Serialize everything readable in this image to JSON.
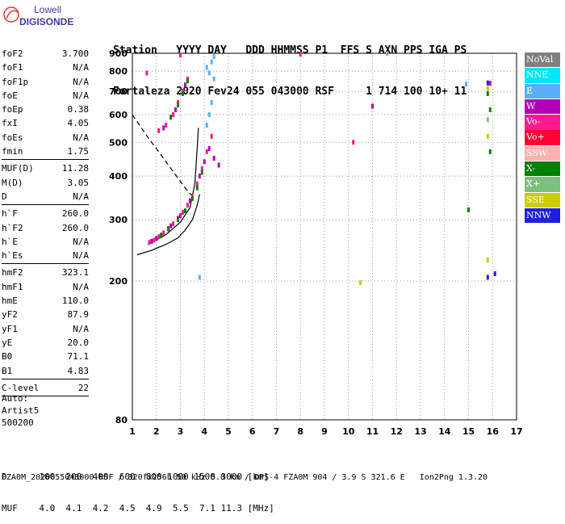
{
  "logo": {
    "line1": "Lowell",
    "line2": "DIGISONDE"
  },
  "header": {
    "line1": "Station   YYYY DAY   DDD HHMMSS P1  FFS S AXN PPS IGA PS",
    "line2": "Fortaleza 2020 Fev24 055 043000 RSF     1 714 100 10+ 11"
  },
  "params": {
    "group1": [
      {
        "label": "foF2",
        "value": "3.700"
      },
      {
        "label": "foF1",
        "value": "N/A"
      },
      {
        "label": "foF1p",
        "value": "N/A"
      },
      {
        "label": "foE",
        "value": "N/A"
      },
      {
        "label": "foEp",
        "value": "0.38"
      },
      {
        "label": "fxI",
        "value": "4.05"
      },
      {
        "label": "foEs",
        "value": "N/A"
      },
      {
        "label": "fmin",
        "value": "1.75"
      }
    ],
    "group2": [
      {
        "label": "MUF(D)",
        "value": "11.28"
      },
      {
        "label": "M(D)",
        "value": "3.05"
      },
      {
        "label": "D",
        "value": "N/A"
      }
    ],
    "group3": [
      {
        "label": "h`F",
        "value": "260.0"
      },
      {
        "label": "h`F2",
        "value": "260.0"
      },
      {
        "label": "h`E",
        "value": "N/A"
      },
      {
        "label": "h`Es",
        "value": "N/A"
      }
    ],
    "group4": [
      {
        "label": "hmF2",
        "value": "323.1"
      },
      {
        "label": "hmF1",
        "value": "N/A"
      },
      {
        "label": "hmE",
        "value": "110.0"
      },
      {
        "label": "yF2",
        "value": "87.9"
      },
      {
        "label": "yF1",
        "value": "N/A"
      },
      {
        "label": "yE",
        "value": "20.0"
      },
      {
        "label": "B0",
        "value": "71.1"
      },
      {
        "label": "B1",
        "value": "4.83"
      }
    ],
    "group5": [
      {
        "label": "C-level",
        "value": "22"
      }
    ]
  },
  "auto": {
    "line1": "Auto:",
    "line2": "Artist5",
    "line3": "500200"
  },
  "bottom": {
    "row1": "D      100  200  400  600  800 1000 1500 3000 [km]",
    "row2": "MUF    4.0  4.1  4.2  4.5  4.9  5.5  7.1 11.3 [MHz]"
  },
  "footer": "FZA0M_2020055043000.RSF / 320fx256h 50 kHz 5.0 km / DPS-4 FZA0M 904 / 3.9 S 321.6 E   Ion2Png 1.3.20",
  "legend": [
    {
      "label": "NoVal",
      "color": "#808080"
    },
    {
      "label": "NNE",
      "color": "#00e6f5"
    },
    {
      "label": "E",
      "color": "#58b0f2"
    },
    {
      "label": "W",
      "color": "#b300b3"
    },
    {
      "label": "Vo-",
      "color": "#ff1a8c"
    },
    {
      "label": "Vo+",
      "color": "#ff0033"
    },
    {
      "label": "SSW",
      "color": "#ffb0b0"
    },
    {
      "label": "X-",
      "color": "#008000"
    },
    {
      "label": "X+",
      "color": "#7fbf7f"
    },
    {
      "label": "SSE",
      "color": "#cccc00"
    },
    {
      "label": "NNW",
      "color": "#1f1fdd"
    }
  ],
  "chart_data": {
    "type": "scatter",
    "title": "",
    "xlabel": "",
    "ylabel": "",
    "xlim": [
      1,
      17
    ],
    "ylim": [
      80,
      900
    ],
    "yscale": "log",
    "xticks": [
      1,
      2,
      3,
      4,
      5,
      6,
      7,
      8,
      9,
      10,
      11,
      12,
      13,
      14,
      15,
      16,
      17
    ],
    "yticks": [
      80,
      200,
      300,
      400,
      500,
      600,
      700,
      800,
      900
    ],
    "grid": "dotted",
    "series": [
      {
        "color": "#ff1a8c",
        "points": [
          [
            1.7,
            258
          ],
          [
            1.9,
            262
          ],
          [
            2.1,
            268
          ],
          [
            2.3,
            275
          ],
          [
            2.5,
            283
          ],
          [
            2.7,
            292
          ],
          [
            2.9,
            303
          ],
          [
            3.1,
            315
          ],
          [
            3.3,
            330
          ],
          [
            3.5,
            350
          ],
          [
            3.7,
            380
          ],
          [
            3.9,
            420
          ],
          [
            4.1,
            470
          ],
          [
            4.3,
            520
          ],
          [
            2.1,
            540
          ],
          [
            2.4,
            560
          ],
          [
            2.7,
            600
          ],
          [
            2.9,
            650
          ],
          [
            3.1,
            700
          ],
          [
            3.3,
            760
          ],
          [
            1.6,
            790
          ],
          [
            3.0,
            890
          ],
          [
            10.2,
            500
          ],
          [
            8.0,
            895
          ]
        ]
      },
      {
        "color": "#b300b3",
        "points": [
          [
            1.8,
            260
          ],
          [
            2.0,
            265
          ],
          [
            2.2,
            271
          ],
          [
            2.6,
            288
          ],
          [
            3.0,
            308
          ],
          [
            3.4,
            340
          ],
          [
            3.8,
            400
          ],
          [
            4.0,
            440
          ],
          [
            4.2,
            480
          ],
          [
            4.4,
            450
          ],
          [
            4.6,
            430
          ],
          [
            2.3,
            550
          ],
          [
            2.8,
            620
          ],
          [
            3.2,
            730
          ],
          [
            11.0,
            635
          ],
          [
            15.9,
            738
          ]
        ]
      },
      {
        "color": "#008000",
        "points": [
          [
            2.2,
            270
          ],
          [
            2.5,
            282
          ],
          [
            2.9,
            300
          ],
          [
            3.2,
            318
          ],
          [
            3.5,
            345
          ],
          [
            3.7,
            370
          ],
          [
            3.9,
            410
          ],
          [
            2.6,
            590
          ],
          [
            2.9,
            640
          ],
          [
            3.1,
            690
          ],
          [
            3.3,
            750
          ],
          [
            15.0,
            320
          ],
          [
            15.8,
            690
          ],
          [
            15.9,
            620
          ],
          [
            15.9,
            470
          ]
        ]
      },
      {
        "color": "#58b0f2",
        "points": [
          [
            4.1,
            560
          ],
          [
            4.2,
            600
          ],
          [
            4.3,
            650
          ],
          [
            4.1,
            820
          ],
          [
            4.2,
            790
          ],
          [
            4.3,
            850
          ],
          [
            4.4,
            760
          ],
          [
            4.4,
            880
          ],
          [
            3.8,
            205
          ],
          [
            14.9,
            735
          ]
        ]
      },
      {
        "color": "#1f1fdd",
        "points": [
          [
            15.8,
            205
          ],
          [
            16.1,
            210
          ],
          [
            15.8,
            740
          ]
        ]
      },
      {
        "color": "#cccc00",
        "points": [
          [
            10.5,
            198
          ],
          [
            15.8,
            520
          ],
          [
            15.8,
            715
          ],
          [
            15.8,
            230
          ]
        ]
      },
      {
        "color": "#7fbf7f",
        "points": [
          [
            11.6,
            898
          ],
          [
            15.8,
            580
          ]
        ]
      }
    ],
    "profile_curve": {
      "points": [
        [
          1.2,
          238
        ],
        [
          1.8,
          245
        ],
        [
          2.4,
          255
        ],
        [
          2.9,
          266
        ],
        [
          3.2,
          280
        ],
        [
          3.5,
          300
        ],
        [
          3.7,
          330
        ],
        [
          3.8,
          355
        ]
      ]
    },
    "upper_curve": {
      "points": [
        [
          1.8,
          258
        ],
        [
          2.4,
          272
        ],
        [
          3.0,
          295
        ],
        [
          3.4,
          325
        ],
        [
          3.6,
          380
        ],
        [
          3.7,
          480
        ],
        [
          3.75,
          550
        ]
      ]
    },
    "dashed_curve": {
      "points": [
        [
          1.0,
          600
        ],
        [
          1.3,
          560
        ],
        [
          1.7,
          510
        ],
        [
          2.1,
          470
        ],
        [
          2.5,
          430
        ],
        [
          2.9,
          395
        ],
        [
          3.2,
          370
        ],
        [
          3.5,
          350
        ]
      ]
    }
  }
}
